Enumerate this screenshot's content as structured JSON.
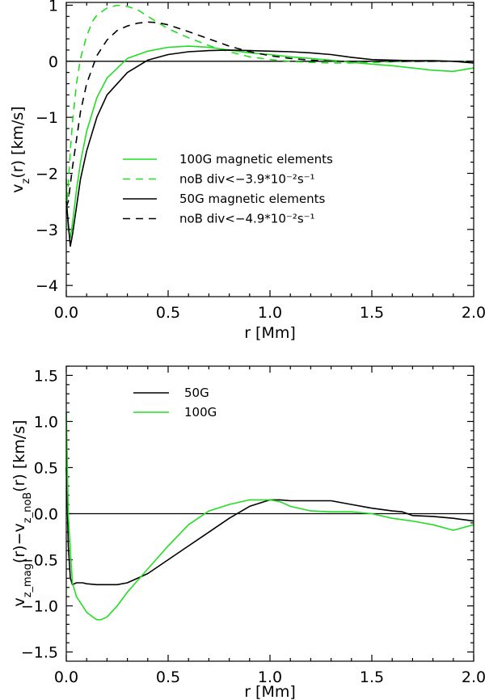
{
  "chart_data": [
    {
      "type": "line",
      "xlabel": "r [Mm]",
      "ylabel": {
        "main": "v",
        "sub": "z",
        "rest": "(r)  [km/s]"
      },
      "xlim": [
        0,
        2
      ],
      "ylim": [
        -4.2,
        1.05
      ],
      "xticks": [
        0,
        0.5,
        1,
        1.5,
        2
      ],
      "xtick_labels": [
        "0.0",
        "0.5",
        "1.0",
        "1.5",
        "2.0"
      ],
      "yticks": [
        -4,
        -3,
        -2,
        -1,
        0,
        1
      ],
      "ytick_labels": [
        "−4",
        "−3",
        "−2",
        "−1",
        "0",
        "1"
      ],
      "zero_line": true,
      "legend": [
        {
          "label": "100G magnetic elements",
          "color": "#22dd22",
          "dash": "solid"
        },
        {
          "label": "noB div<−3.9*10⁻²s⁻¹",
          "color": "#22dd22",
          "dash": "dashed"
        },
        {
          "label": "50G magnetic elements",
          "color": "#000000",
          "dash": "solid"
        },
        {
          "label": "noB div<−4.9*10⁻²s⁻¹",
          "color": "#000000",
          "dash": "dashed"
        }
      ],
      "series": [
        {
          "name": "100G magnetic elements",
          "color": "#22dd22",
          "dash": "solid",
          "x": [
            0.0,
            0.005,
            0.01,
            0.02,
            0.03,
            0.05,
            0.07,
            0.1,
            0.15,
            0.2,
            0.3,
            0.4,
            0.5,
            0.6,
            0.7,
            0.8,
            0.9,
            1.0,
            1.1,
            1.2,
            1.3,
            1.4,
            1.5,
            1.6,
            1.7,
            1.8,
            1.9,
            2.0
          ],
          "y": [
            -2.1,
            -2.7,
            -3.0,
            -3.15,
            -2.9,
            -2.3,
            -1.8,
            -1.25,
            -0.65,
            -0.3,
            0.05,
            0.18,
            0.25,
            0.27,
            0.25,
            0.2,
            0.15,
            0.12,
            0.08,
            0.05,
            0.02,
            -0.02,
            -0.05,
            -0.08,
            -0.12,
            -0.16,
            -0.18,
            -0.12
          ]
        },
        {
          "name": "noB div<−3.9*10⁻²s⁻¹",
          "color": "#22dd22",
          "dash": "dashed",
          "x": [
            0.0,
            0.01,
            0.02,
            0.03,
            0.05,
            0.07,
            0.1,
            0.13,
            0.15,
            0.2,
            0.25,
            0.3,
            0.35,
            0.4,
            0.5,
            0.6,
            0.7,
            0.8,
            0.9,
            1.0,
            1.1,
            1.2,
            1.3,
            1.4,
            1.5,
            1.6,
            1.7,
            1.8,
            1.9,
            2.0
          ],
          "y": [
            -2.7,
            -2.2,
            -1.6,
            -1.1,
            -0.4,
            0.05,
            0.45,
            0.72,
            0.82,
            0.95,
            1.0,
            0.98,
            0.92,
            0.8,
            0.58,
            0.42,
            0.28,
            0.17,
            0.08,
            0.03,
            0.0,
            -0.02,
            -0.03,
            -0.03,
            -0.02,
            -0.01,
            0.0,
            0.0,
            0.0,
            0.0
          ]
        },
        {
          "name": "50G magnetic elements",
          "color": "#000000",
          "dash": "solid",
          "x": [
            0.0,
            0.01,
            0.02,
            0.03,
            0.05,
            0.07,
            0.1,
            0.15,
            0.2,
            0.3,
            0.4,
            0.5,
            0.6,
            0.7,
            0.8,
            0.9,
            1.0,
            1.1,
            1.2,
            1.3,
            1.4,
            1.5,
            1.6,
            1.7,
            1.8,
            1.9,
            2.0
          ],
          "y": [
            -2.5,
            -2.9,
            -3.3,
            -3.1,
            -2.6,
            -2.1,
            -1.6,
            -1.0,
            -0.6,
            -0.2,
            0.02,
            0.12,
            0.17,
            0.19,
            0.2,
            0.19,
            0.18,
            0.17,
            0.15,
            0.12,
            0.07,
            0.03,
            0.02,
            0.01,
            0.01,
            0.0,
            -0.03
          ]
        },
        {
          "name": "noB div<−4.9*10⁻²s⁻¹",
          "color": "#000000",
          "dash": "dashed",
          "x": [
            0.0,
            0.01,
            0.02,
            0.03,
            0.05,
            0.07,
            0.1,
            0.15,
            0.2,
            0.25,
            0.3,
            0.35,
            0.4,
            0.45,
            0.5,
            0.6,
            0.7,
            0.8,
            0.9,
            1.0,
            1.1,
            1.2,
            1.3,
            1.4,
            1.5,
            1.6,
            1.7,
            1.8,
            1.9,
            2.0
          ],
          "y": [
            -2.6,
            -2.5,
            -2.2,
            -1.9,
            -1.4,
            -0.9,
            -0.4,
            0.1,
            0.38,
            0.55,
            0.63,
            0.68,
            0.7,
            0.69,
            0.65,
            0.53,
            0.4,
            0.27,
            0.17,
            0.1,
            0.05,
            0.02,
            0.0,
            0.0,
            0.0,
            0.0,
            0.0,
            0.0,
            0.0,
            0.0
          ]
        }
      ]
    },
    {
      "type": "line",
      "xlabel": "r [Mm]",
      "ylabel": {
        "main": "v",
        "sub": "z_mag",
        "mid": "(r)−v",
        "sub2": "z_noB",
        "rest": "(r)  [km/s]"
      },
      "xlim": [
        0,
        2
      ],
      "ylim": [
        -1.6,
        1.6
      ],
      "xticks": [
        0,
        0.5,
        1,
        1.5,
        2
      ],
      "xtick_labels": [
        "0.0",
        "0.5",
        "1.0",
        "1.5",
        "2.0"
      ],
      "yticks": [
        -1.5,
        -1.0,
        -0.5,
        0.0,
        0.5,
        1.0,
        1.5
      ],
      "ytick_labels": [
        "−1.5",
        "−1.0",
        "−0.5",
        "0.0",
        "0.5",
        "1.0",
        "1.5"
      ],
      "zero_line": true,
      "legend": [
        {
          "label": "50G",
          "color": "#000000",
          "dash": "solid"
        },
        {
          "label": "100G",
          "color": "#22dd22",
          "dash": "solid"
        }
      ],
      "series": [
        {
          "name": "50G",
          "color": "#000000",
          "dash": "solid",
          "x": [
            0.0,
            0.005,
            0.01,
            0.02,
            0.03,
            0.05,
            0.08,
            0.1,
            0.15,
            0.2,
            0.25,
            0.3,
            0.4,
            0.5,
            0.6,
            0.7,
            0.8,
            0.9,
            1.0,
            1.05,
            1.1,
            1.2,
            1.3,
            1.4,
            1.5,
            1.6,
            1.65,
            1.7,
            1.8,
            1.9,
            2.0
          ],
          "y": [
            0.5,
            0.1,
            -0.35,
            -0.7,
            -0.77,
            -0.75,
            -0.75,
            -0.76,
            -0.77,
            -0.77,
            -0.77,
            -0.75,
            -0.65,
            -0.5,
            -0.35,
            -0.2,
            -0.05,
            0.08,
            0.15,
            0.15,
            0.14,
            0.14,
            0.14,
            0.1,
            0.06,
            0.03,
            0.02,
            -0.02,
            -0.03,
            -0.05,
            -0.08
          ]
        },
        {
          "name": "100G",
          "color": "#22dd22",
          "dash": "solid",
          "x": [
            0.0,
            0.005,
            0.01,
            0.02,
            0.03,
            0.05,
            0.08,
            0.1,
            0.13,
            0.15,
            0.17,
            0.2,
            0.25,
            0.3,
            0.4,
            0.5,
            0.6,
            0.7,
            0.8,
            0.9,
            1.0,
            1.05,
            1.1,
            1.2,
            1.3,
            1.4,
            1.5,
            1.6,
            1.7,
            1.8,
            1.9,
            2.0
          ],
          "y": [
            1.1,
            0.5,
            0.0,
            -0.4,
            -0.75,
            -0.9,
            -1.0,
            -1.07,
            -1.12,
            -1.15,
            -1.15,
            -1.12,
            -1.0,
            -0.85,
            -0.6,
            -0.35,
            -0.12,
            0.03,
            0.1,
            0.15,
            0.15,
            0.13,
            0.08,
            0.03,
            0.02,
            0.02,
            0.0,
            -0.05,
            -0.08,
            -0.12,
            -0.18,
            -0.12
          ]
        }
      ]
    }
  ]
}
